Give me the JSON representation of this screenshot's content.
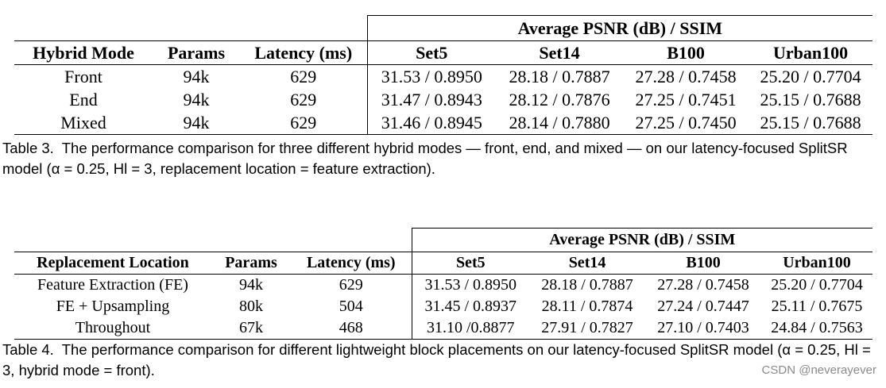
{
  "table3": {
    "group_header": "Average PSNR (dB) / SSIM",
    "columns": [
      "Hybrid Mode",
      "Params",
      "Latency (ms)",
      "Set5",
      "Set14",
      "B100",
      "Urban100"
    ],
    "rows": [
      [
        "Front",
        "94k",
        "629",
        "31.53 / 0.8950",
        "28.18 / 0.7887",
        "27.28 / 0.7458",
        "25.20 / 0.7704"
      ],
      [
        "End",
        "94k",
        "629",
        "31.47 / 0.8943",
        "28.12 / 0.7876",
        "27.25 / 0.7451",
        "25.15 / 0.7688"
      ],
      [
        "Mixed",
        "94k",
        "629",
        "31.46 / 0.8945",
        "28.14 / 0.7880",
        "27.25 / 0.7450",
        "25.15 / 0.7688"
      ]
    ],
    "caption_label": "Table 3.",
    "caption_text": "The performance comparison for three different hybrid modes — front, end, and mixed — on our latency-focused SplitSR model (α = 0.25, Hl = 3, replacement location = feature extraction)."
  },
  "table4": {
    "group_header": "Average PSNR (dB) / SSIM",
    "columns": [
      "Replacement Location",
      "Params",
      "Latency (ms)",
      "Set5",
      "Set14",
      "B100",
      "Urban100"
    ],
    "rows": [
      [
        "Feature Extraction (FE)",
        "94k",
        "629",
        "31.53 / 0.8950",
        "28.18 / 0.7887",
        "27.28 / 0.7458",
        "25.20 / 0.7704"
      ],
      [
        "FE + Upsampling",
        "80k",
        "504",
        "31.45 / 0.8937",
        "28.11 / 0.7874",
        "27.24 / 0.7447",
        "25.11 / 0.7675"
      ],
      [
        "Throughout",
        "67k",
        "468",
        "31.10 /0.8877",
        "27.91 / 0.7827",
        "27.10 / 0.7403",
        "24.84 / 0.7563"
      ]
    ],
    "caption_label": "Table 4.",
    "caption_text": "The performance comparison for different lightweight block placements on our latency-focused SplitSR model (α = 0.25, Hl = 3, hybrid mode = front)."
  },
  "watermark": "CSDN @neverayever"
}
